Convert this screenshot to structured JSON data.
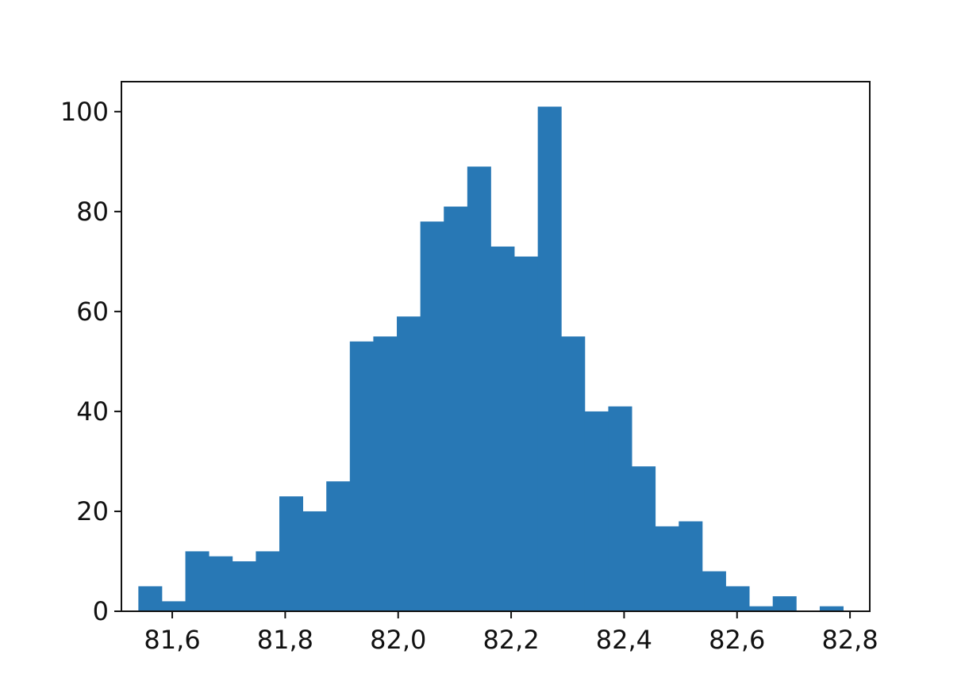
{
  "chart_data": {
    "type": "bar",
    "subtype": "histogram",
    "bar_color": "#2878b5",
    "frame_color": "#111111",
    "grid": false,
    "xlim": [
      81.51,
      82.835
    ],
    "ylim": [
      0,
      106
    ],
    "x_ticks": [
      {
        "value": 81.6,
        "label": "81,6"
      },
      {
        "value": 81.8,
        "label": "81,8"
      },
      {
        "value": 82.0,
        "label": "82,0"
      },
      {
        "value": 82.2,
        "label": "82,2"
      },
      {
        "value": 82.4,
        "label": "82,4"
      },
      {
        "value": 82.6,
        "label": "82,6"
      },
      {
        "value": 82.8,
        "label": "82,8"
      }
    ],
    "y_ticks": [
      {
        "value": 0,
        "label": "0"
      },
      {
        "value": 20,
        "label": "20"
      },
      {
        "value": 40,
        "label": "40"
      },
      {
        "value": 60,
        "label": "60"
      },
      {
        "value": 80,
        "label": "80"
      },
      {
        "value": 100,
        "label": "100"
      }
    ],
    "bin_start": 81.54,
    "bin_width": 0.0416,
    "values": [
      5,
      2,
      12,
      11,
      10,
      12,
      23,
      20,
      26,
      54,
      55,
      59,
      78,
      81,
      89,
      73,
      71,
      101,
      55,
      40,
      41,
      29,
      17,
      18,
      8,
      5,
      1,
      3,
      0,
      1
    ]
  }
}
